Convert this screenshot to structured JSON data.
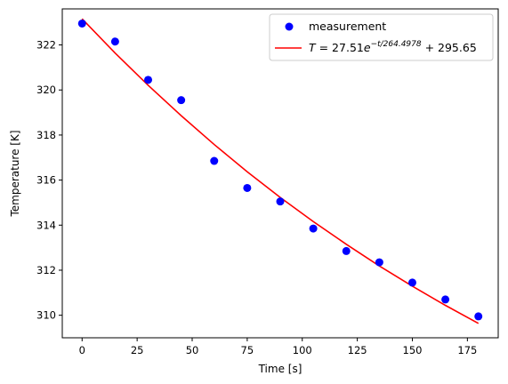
{
  "chart_data": {
    "type": "scatter",
    "xlabel": "Time [s]",
    "ylabel": "Temperature [K]",
    "xlim": [
      -9,
      189
    ],
    "ylim": [
      309.0,
      323.6
    ],
    "x_ticks": [
      0,
      25,
      50,
      75,
      100,
      125,
      150,
      175
    ],
    "y_ticks": [
      310,
      312,
      314,
      316,
      318,
      320,
      322
    ],
    "grid": false,
    "legend_position": "top-right",
    "series": [
      {
        "name": "measurement",
        "kind": "scatter",
        "color": "#0000ff",
        "x": [
          0,
          15,
          30,
          45,
          60,
          75,
          90,
          105,
          120,
          135,
          150,
          165,
          180
        ],
        "y": [
          322.95,
          322.15,
          320.45,
          319.55,
          316.85,
          315.65,
          315.05,
          313.85,
          312.85,
          312.35,
          311.45,
          310.7,
          309.95
        ]
      },
      {
        "name": "T = 27.51e^(−t/264.4978) + 295.65",
        "kind": "line",
        "color": "#ff0000",
        "x": [
          0,
          15,
          30,
          45,
          60,
          75,
          90,
          105,
          120,
          135,
          150,
          165,
          180
        ],
        "y": [
          323.16,
          321.64,
          320.21,
          318.86,
          317.58,
          316.37,
          315.23,
          314.16,
          313.15,
          312.19,
          311.29,
          310.44,
          309.64
        ]
      }
    ],
    "legend": {
      "measurement_label": "measurement",
      "fit_label": {
        "lhs": "T",
        "eq": " = 27.51",
        "base": "e",
        "exp": "−t/264.4978",
        "rest": " + 295.65"
      }
    }
  }
}
